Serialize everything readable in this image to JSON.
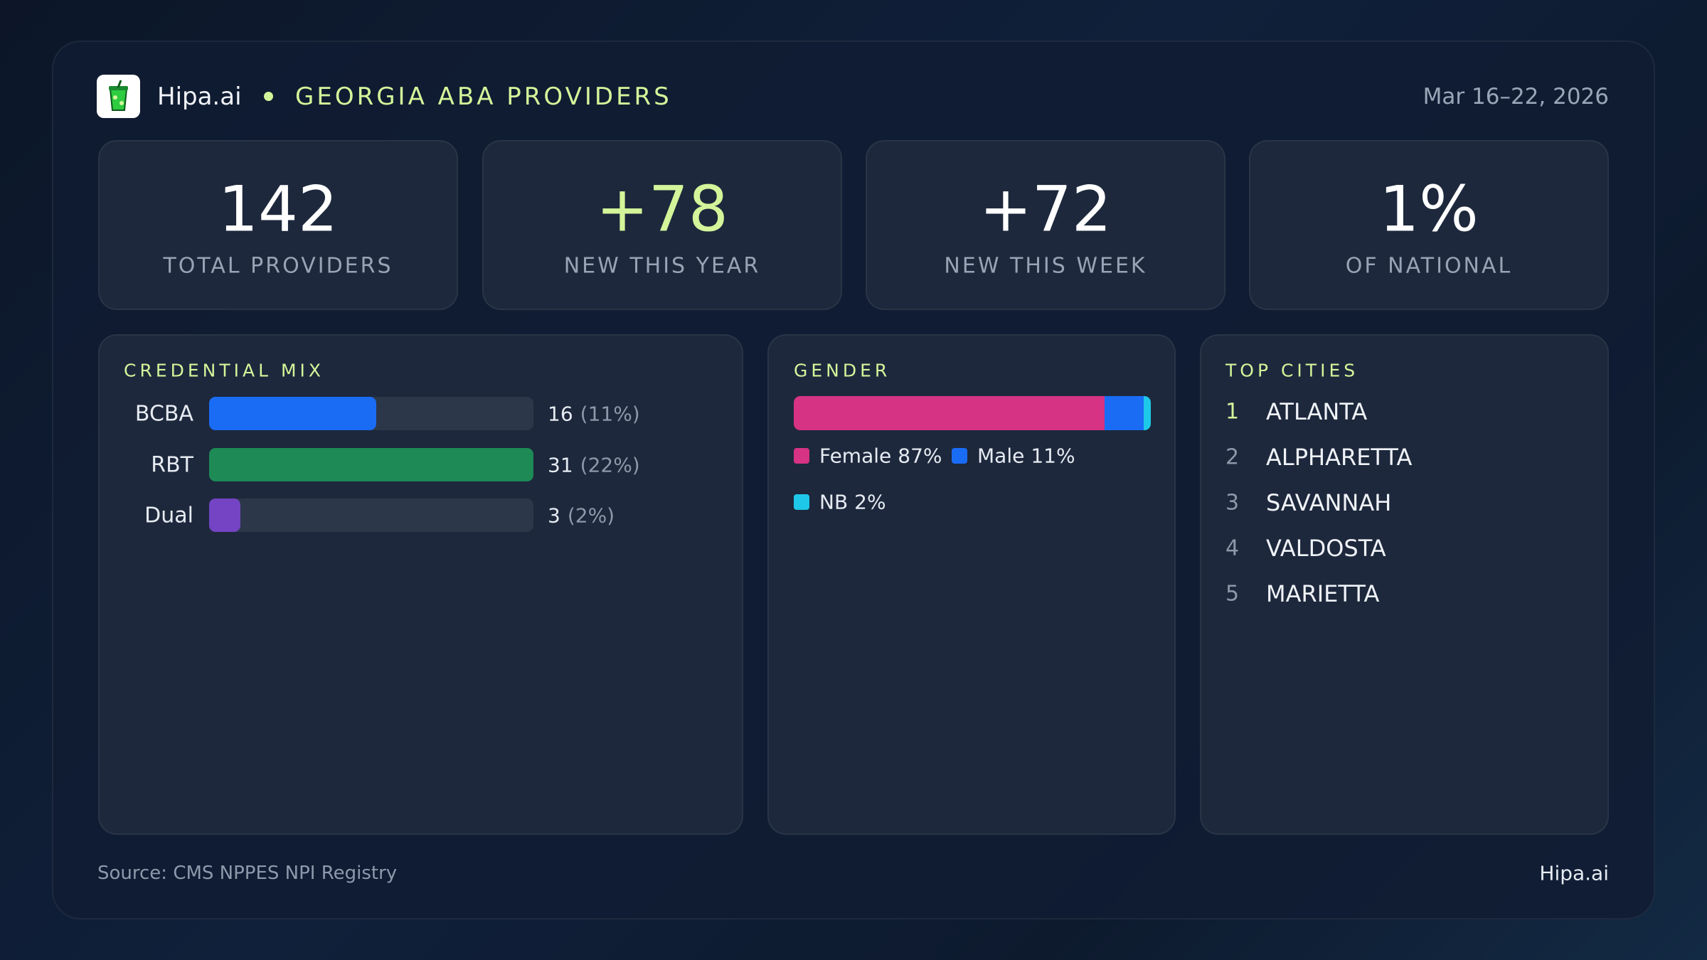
{
  "header": {
    "brand": "Hipa.ai",
    "title": "GEORGIA ABA PROVIDERS",
    "date": "Mar 16–22, 2026"
  },
  "kpis": [
    {
      "value": "142",
      "label": "TOTAL PROVIDERS",
      "color": "#ffffff"
    },
    {
      "value": "+78",
      "label": "NEW THIS YEAR",
      "color": "#d4f59a"
    },
    {
      "value": "+72",
      "label": "NEW THIS WEEK",
      "color": "#ffffff"
    },
    {
      "value": "1%",
      "label": "OF NATIONAL",
      "color": "#ffffff"
    }
  ],
  "credential_mix": {
    "title": "CREDENTIAL MIX",
    "rows": [
      {
        "label": "BCBA",
        "value": 16,
        "share_label": "(11%)",
        "color": "#1a6cf5"
      },
      {
        "label": "RBT",
        "value": 31,
        "share_label": "(22%)",
        "color": "#1e8a55"
      },
      {
        "label": "Dual",
        "value": 3,
        "share_label": "(2%)",
        "color": "#7444c4"
      }
    ]
  },
  "gender": {
    "title": "GENDER",
    "segments": [
      {
        "name": "Female",
        "value": 87,
        "value_label": "87%",
        "color": "#d63384"
      },
      {
        "name": "Male",
        "value": 11,
        "value_label": "11%",
        "color": "#1a6cf5"
      },
      {
        "name": "NB",
        "value": 2,
        "value_label": "2%",
        "color": "#1ec8e8"
      }
    ]
  },
  "top_cities": {
    "title": "TOP CITIES",
    "rows": [
      {
        "rank": 1,
        "name": "ATLANTA"
      },
      {
        "rank": 2,
        "name": "ALPHARETTA"
      },
      {
        "rank": 3,
        "name": "SAVANNAH"
      },
      {
        "rank": 4,
        "name": "VALDOSTA"
      },
      {
        "rank": 5,
        "name": "MARIETTA"
      }
    ]
  },
  "footer": {
    "source": "Source: CMS NPPES NPI Registry",
    "brand": "Hipa.ai"
  }
}
